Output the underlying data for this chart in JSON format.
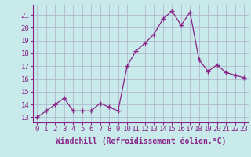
{
  "x": [
    0,
    1,
    2,
    3,
    4,
    5,
    6,
    7,
    8,
    9,
    10,
    11,
    12,
    13,
    14,
    15,
    16,
    17,
    18,
    19,
    20,
    21,
    22,
    23
  ],
  "y": [
    13.0,
    13.5,
    14.0,
    14.5,
    13.5,
    13.5,
    13.5,
    14.1,
    13.8,
    13.5,
    17.0,
    18.2,
    18.8,
    19.5,
    20.7,
    21.3,
    20.2,
    21.2,
    17.5,
    16.6,
    17.1,
    16.5,
    16.3,
    16.1
  ],
  "line_color": "#882288",
  "marker": "+",
  "marker_size": 4,
  "bg_color": "#c8eaea",
  "grid_color": "#b0b8d0",
  "xlabel": "Windchill (Refroidissement éolien,°C)",
  "ylabel_ticks": [
    13,
    14,
    15,
    16,
    17,
    18,
    19,
    20,
    21
  ],
  "xtick_labels": [
    "0",
    "1",
    "2",
    "3",
    "4",
    "5",
    "6",
    "7",
    "8",
    "9",
    "10",
    "11",
    "12",
    "13",
    "14",
    "15",
    "16",
    "17",
    "18",
    "19",
    "20",
    "21",
    "22",
    "23"
  ],
  "ylim": [
    12.6,
    21.8
  ],
  "xlim": [
    -0.5,
    23.5
  ],
  "line_color_dark": "#772277",
  "tick_fontsize": 6.5,
  "label_fontsize": 7.0
}
